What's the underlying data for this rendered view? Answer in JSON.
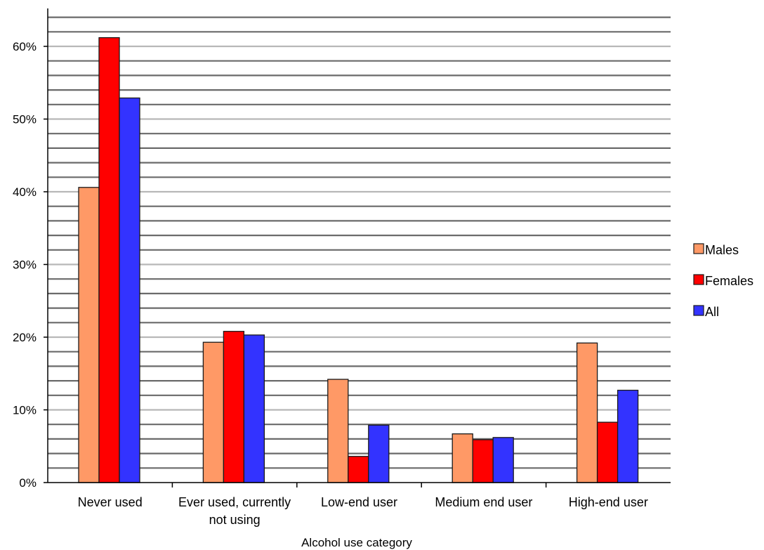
{
  "chart_data": {
    "type": "bar",
    "title": "",
    "xlabel": "Alcohol use category",
    "ylabel": "",
    "categories": [
      [
        "Never used"
      ],
      [
        "Ever used, currently",
        "not using"
      ],
      [
        "Low-end user"
      ],
      [
        "Medium end user"
      ],
      [
        "High-end user"
      ]
    ],
    "series": [
      {
        "name": "Males",
        "color": "#FF9966",
        "values": [
          40.6,
          19.3,
          14.2,
          6.7,
          19.2
        ]
      },
      {
        "name": "Females",
        "color": "#FF0000",
        "values": [
          61.2,
          20.8,
          3.6,
          5.9,
          8.3
        ]
      },
      {
        "name": "All",
        "color": "#3333FF",
        "values": [
          52.9,
          20.3,
          7.9,
          6.2,
          12.7
        ]
      }
    ],
    "ylim": [
      0,
      65
    ],
    "yticks": [
      0,
      10,
      20,
      30,
      40,
      50,
      60
    ],
    "ytick_labels": [
      "0%",
      "10%",
      "20%",
      "30%",
      "40%",
      "50%",
      "60%"
    ],
    "minor_grid_step": 2,
    "grid": true,
    "legend_position": "right"
  }
}
